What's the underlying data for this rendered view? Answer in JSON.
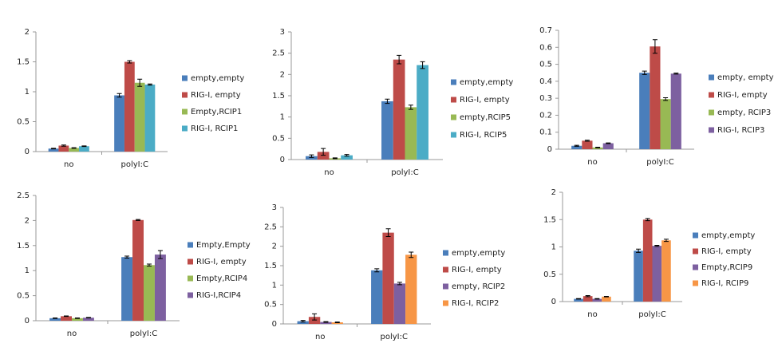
{
  "chart_data": [
    {
      "type": "bar",
      "categories": [
        "no",
        "polyI:C"
      ],
      "ylim": [
        0,
        2
      ],
      "yticks": [
        0,
        0.5,
        1,
        1.5,
        2
      ],
      "series": [
        {
          "name": "empty,empty",
          "color": "#4a7ebb",
          "values": [
            0.05,
            0.94
          ],
          "errors": [
            0.005,
            0.03
          ]
        },
        {
          "name": "RIG-I, empty",
          "color": "#be4b48",
          "values": [
            0.1,
            1.5
          ],
          "errors": [
            0.01,
            0.02
          ]
        },
        {
          "name": "Empty,RCIP1",
          "color": "#98b954",
          "values": [
            0.06,
            1.15
          ],
          "errors": [
            0.005,
            0.06
          ]
        },
        {
          "name": "RIG-I, RCIP1",
          "color": "#4bacc6",
          "values": [
            0.09,
            1.12
          ],
          "errors": [
            0.005,
            0.01
          ]
        }
      ]
    },
    {
      "type": "bar",
      "categories": [
        "no",
        "polyI:C"
      ],
      "ylim": [
        0,
        3
      ],
      "yticks": [
        0,
        0.5,
        1,
        1.5,
        2,
        2.5,
        3
      ],
      "series": [
        {
          "name": "empty,empty",
          "color": "#4a7ebb",
          "values": [
            0.08,
            1.37
          ],
          "errors": [
            0.03,
            0.05
          ]
        },
        {
          "name": "RIG-I, empty",
          "color": "#be4b48",
          "values": [
            0.18,
            2.35
          ],
          "errors": [
            0.08,
            0.1
          ]
        },
        {
          "name": "empty,RCIP5",
          "color": "#98b954",
          "values": [
            0.03,
            1.23
          ],
          "errors": [
            0.01,
            0.05
          ]
        },
        {
          "name": "RIG-I, RCIP5",
          "color": "#4bacc6",
          "values": [
            0.1,
            2.22
          ],
          "errors": [
            0.02,
            0.08
          ]
        }
      ]
    },
    {
      "type": "bar",
      "categories": [
        "no",
        "polyI:C"
      ],
      "ylim": [
        0,
        0.7
      ],
      "yticks": [
        0,
        0.1,
        0.2,
        0.3,
        0.4,
        0.5,
        0.6,
        0.7
      ],
      "series": [
        {
          "name": "empty, empty",
          "color": "#4a7ebb",
          "values": [
            0.02,
            0.45
          ],
          "errors": [
            0.003,
            0.01
          ]
        },
        {
          "name": "RIG-I, empty",
          "color": "#be4b48",
          "values": [
            0.05,
            0.605
          ],
          "errors": [
            0.003,
            0.04
          ]
        },
        {
          "name": "empty, RCIP3",
          "color": "#98b954",
          "values": [
            0.01,
            0.295
          ],
          "errors": [
            0.002,
            0.008
          ]
        },
        {
          "name": "RIG-I, RCIP3",
          "color": "#7d60a0",
          "values": [
            0.035,
            0.445
          ],
          "errors": [
            0.002,
            0.003
          ]
        }
      ]
    },
    {
      "type": "bar",
      "categories": [
        "no",
        "polyI:C"
      ],
      "ylim": [
        0,
        2.5
      ],
      "yticks": [
        0,
        0.5,
        1,
        1.5,
        2,
        2.5
      ],
      "series": [
        {
          "name": "Empty,Empty",
          "color": "#4a7ebb",
          "values": [
            0.05,
            1.27
          ],
          "errors": [
            0.005,
            0.02
          ]
        },
        {
          "name": "RIG-I, empty",
          "color": "#be4b48",
          "values": [
            0.09,
            2.01
          ],
          "errors": [
            0.005,
            0.01
          ]
        },
        {
          "name": "Empty,RCIP4",
          "color": "#98b954",
          "values": [
            0.05,
            1.11
          ],
          "errors": [
            0.005,
            0.02
          ]
        },
        {
          "name": "RIG-I,RCIP4",
          "color": "#7d60a0",
          "values": [
            0.06,
            1.32
          ],
          "errors": [
            0.005,
            0.08
          ]
        }
      ]
    },
    {
      "type": "bar",
      "categories": [
        "no",
        "polyI:C"
      ],
      "ylim": [
        0,
        3
      ],
      "yticks": [
        0,
        0.5,
        1,
        1.5,
        2,
        2.5,
        3
      ],
      "series": [
        {
          "name": "empty,empty",
          "color": "#4a7ebb",
          "values": [
            0.07,
            1.38
          ],
          "errors": [
            0.02,
            0.04
          ]
        },
        {
          "name": "RIG-I, empty",
          "color": "#be4b48",
          "values": [
            0.18,
            2.35
          ],
          "errors": [
            0.08,
            0.1
          ]
        },
        {
          "name": "empty, RCIP2",
          "color": "#7d60a0",
          "values": [
            0.05,
            1.04
          ],
          "errors": [
            0.01,
            0.03
          ]
        },
        {
          "name": "RIG-I, RCIP2",
          "color": "#f79646",
          "values": [
            0.04,
            1.78
          ],
          "errors": [
            0.01,
            0.07
          ]
        }
      ]
    },
    {
      "type": "bar",
      "categories": [
        "no",
        "polyI:C"
      ],
      "ylim": [
        0,
        2
      ],
      "yticks": [
        0,
        0.5,
        1,
        1.5,
        2
      ],
      "series": [
        {
          "name": "empty,empty",
          "color": "#4a7ebb",
          "values": [
            0.05,
            0.93
          ],
          "errors": [
            0.005,
            0.03
          ]
        },
        {
          "name": "RIG-I, empty",
          "color": "#be4b48",
          "values": [
            0.1,
            1.5
          ],
          "errors": [
            0.01,
            0.02
          ]
        },
        {
          "name": "Empty,RCIP9",
          "color": "#7d60a0",
          "values": [
            0.05,
            1.02
          ],
          "errors": [
            0.005,
            0.01
          ]
        },
        {
          "name": "RIG-I, RCIP9",
          "color": "#f79646",
          "values": [
            0.09,
            1.12
          ],
          "errors": [
            0.005,
            0.02
          ]
        }
      ]
    }
  ]
}
